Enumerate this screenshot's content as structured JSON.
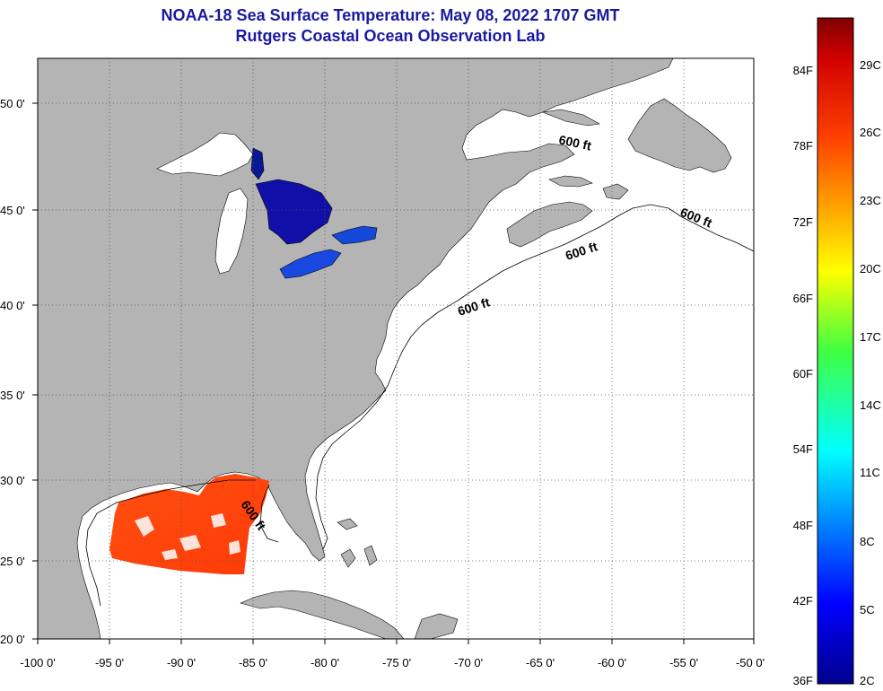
{
  "title": "NOAA-18 Sea Surface Temperature:  May 08, 2022 1707 GMT",
  "subtitle": "Rutgers Coastal Ocean Observation Lab",
  "colors": {
    "land": "#b4b4b4",
    "ocean": "#ffffff",
    "title_text": "#1a1aa0"
  },
  "map": {
    "lon_range": [
      -100,
      -50
    ],
    "lat_range": [
      20,
      52
    ],
    "lon_ticks": [
      "-100 0'",
      "-95 0'",
      "-90 0'",
      "-85 0'",
      "-80 0'",
      "-75 0'",
      "-70 0'",
      "-65 0'",
      "-60 0'",
      "-55 0'",
      "-50 0'"
    ],
    "lat_ticks": [
      "50 0'",
      "45 0'",
      "40 0'",
      "35 0'",
      "30 0'",
      "25 0'",
      "20 0'"
    ],
    "contour_label": "600 ft"
  },
  "colorbar": {
    "f_labels": [
      "84F",
      "78F",
      "72F",
      "66F",
      "60F",
      "54F",
      "48F",
      "42F",
      "36F"
    ],
    "c_labels": [
      "29C",
      "26C",
      "23C",
      "20C",
      "17C",
      "14C",
      "11C",
      "8C",
      "5C",
      "2C"
    ]
  }
}
